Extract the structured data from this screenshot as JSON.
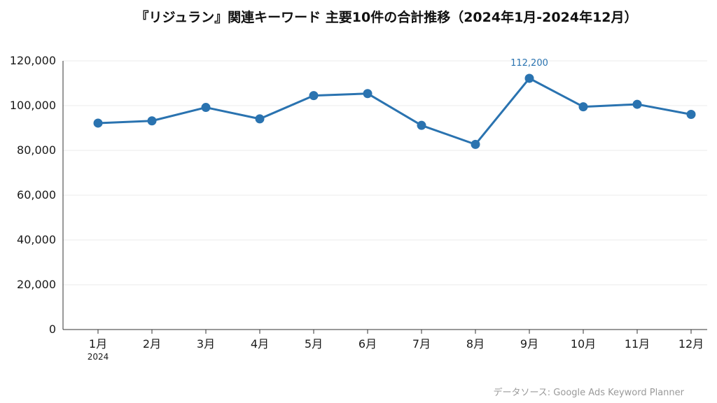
{
  "chart_data": {
    "type": "line",
    "title": "『リジュラン』関連キーワード 主要10件の合計推移（2024年1月-2024年12月）",
    "categories": [
      "1月",
      "2月",
      "3月",
      "4月",
      "5月",
      "6月",
      "7月",
      "8月",
      "9月",
      "10月",
      "11月",
      "12月"
    ],
    "year_label": "2024",
    "series": [
      {
        "name": "合計",
        "values": [
          92200,
          93200,
          99200,
          94100,
          104500,
          105400,
          91200,
          82700,
          112200,
          99500,
          100600,
          96100
        ]
      }
    ],
    "ylim": [
      0,
      120000
    ],
    "yticks": [
      0,
      20000,
      40000,
      60000,
      80000,
      100000,
      120000
    ],
    "ytick_labels": [
      "0",
      "20,000",
      "40,000",
      "60,000",
      "80,000",
      "100,000",
      "120,000"
    ],
    "annotations": [
      {
        "index": 8,
        "text": "112,200"
      }
    ],
    "grid": true,
    "colors": {
      "line": "#2a73b0",
      "grid": "#ebebeb",
      "axis": "#333333"
    },
    "source": "データソース: Google Ads Keyword Planner"
  }
}
